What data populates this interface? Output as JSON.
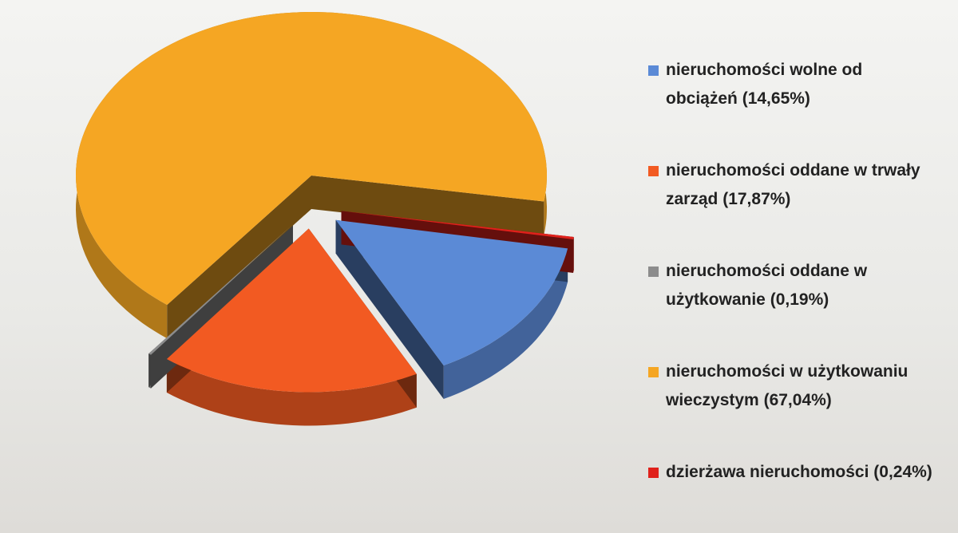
{
  "chart_data": {
    "type": "pie3d",
    "categories": [
      "nieruchomości wolne od obciążeń",
      "nieruchomości oddane w trwały zarząd",
      "nieruchomości oddane w użytkowanie",
      "nieruchomości w użytkowaniu wieczystym",
      "dzierżawa nieruchomości"
    ],
    "values": [
      14.65,
      17.87,
      0.19,
      67.04,
      0.24
    ],
    "value_labels": [
      "(14,65%)",
      "(17,87%)",
      "(0,19%)",
      "(67,04%)",
      "(0,24%)"
    ],
    "colors": [
      "#5b8ad6",
      "#f25a22",
      "#8c8c8c",
      "#f5a623",
      "#e0211b"
    ],
    "legend": "right"
  }
}
